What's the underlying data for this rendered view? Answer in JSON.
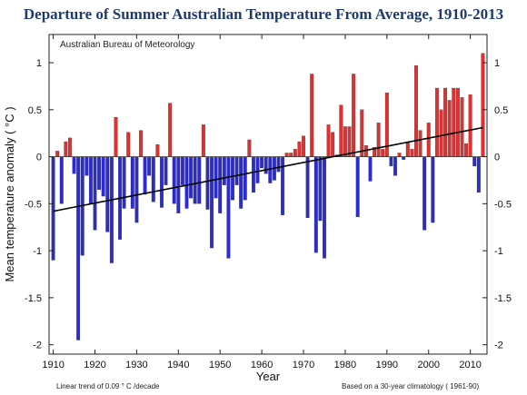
{
  "chart_data": {
    "type": "bar",
    "title": "Departure of Summer Australian Temperature From Average, 1910-2013",
    "source_label": "Australian Bureau of Meteorology",
    "xlabel": "Year",
    "ylabel": "Mean temperature anomaly ( °C )",
    "xlim": [
      1909,
      2014
    ],
    "ylim": [
      -2.1,
      1.3
    ],
    "x_ticks": [
      1910,
      1920,
      1930,
      1940,
      1950,
      1960,
      1970,
      1980,
      1990,
      2000,
      2010
    ],
    "y_ticks": [
      -2,
      -1.5,
      -1,
      -0.5,
      0,
      0.5,
      1
    ],
    "y_tick_labels": [
      "-2",
      "-1.5",
      "-1",
      "-0.5",
      "0",
      "0.5",
      "1"
    ],
    "grid": false,
    "colors": {
      "positive": "#e03030",
      "negative": "#2b2bd4",
      "trend": "#000000",
      "title": "#1f3a6e"
    },
    "years": [
      1910,
      1911,
      1912,
      1913,
      1914,
      1915,
      1916,
      1917,
      1918,
      1919,
      1920,
      1921,
      1922,
      1923,
      1924,
      1925,
      1926,
      1927,
      1928,
      1929,
      1930,
      1931,
      1932,
      1933,
      1934,
      1935,
      1936,
      1937,
      1938,
      1939,
      1940,
      1941,
      1942,
      1943,
      1944,
      1945,
      1946,
      1947,
      1948,
      1949,
      1950,
      1951,
      1952,
      1953,
      1954,
      1955,
      1956,
      1957,
      1958,
      1959,
      1960,
      1961,
      1962,
      1963,
      1964,
      1965,
      1966,
      1967,
      1968,
      1969,
      1970,
      1971,
      1972,
      1973,
      1974,
      1975,
      1976,
      1977,
      1978,
      1979,
      1980,
      1981,
      1982,
      1983,
      1984,
      1985,
      1986,
      1987,
      1988,
      1989,
      1990,
      1991,
      1992,
      1993,
      1994,
      1995,
      1996,
      1997,
      1998,
      1999,
      2000,
      2001,
      2002,
      2003,
      2004,
      2005,
      2006,
      2007,
      2008,
      2009,
      2010,
      2011,
      2012,
      2013
    ],
    "values": [
      -1.1,
      0.06,
      -0.5,
      0.16,
      0.2,
      -0.18,
      -1.95,
      -1.05,
      -0.2,
      -0.5,
      -0.78,
      -0.35,
      -0.42,
      -0.8,
      -1.13,
      0.42,
      -0.88,
      -0.55,
      0.26,
      -0.55,
      -0.7,
      0.28,
      -0.4,
      -0.2,
      -0.48,
      0.13,
      -0.54,
      -0.3,
      0.57,
      -0.5,
      -0.6,
      -0.3,
      -0.55,
      -0.44,
      -0.5,
      -0.5,
      0.34,
      -0.56,
      -0.97,
      -0.44,
      -0.6,
      -0.3,
      -1.08,
      -0.46,
      -0.3,
      -0.55,
      -0.46,
      0.18,
      -0.38,
      -0.28,
      -0.12,
      -0.18,
      -0.28,
      -0.25,
      -0.16,
      -0.62,
      0.04,
      0.04,
      0.08,
      0.16,
      0.22,
      -0.65,
      0.88,
      -1.02,
      -0.68,
      -1.08,
      0.34,
      0.26,
      0.02,
      0.55,
      0.32,
      0.32,
      0.88,
      -0.64,
      0.5,
      0.12,
      -0.26,
      0.1,
      0.36,
      0.08,
      0.68,
      -0.1,
      -0.2,
      0.04,
      -0.03,
      0.16,
      0.08,
      0.97,
      0.28,
      -0.78,
      0.36,
      -0.7,
      0.73,
      0.5,
      0.73,
      0.6,
      0.73,
      0.73,
      0.63,
      0.14,
      0.66,
      -0.1,
      -0.38,
      1.1
    ],
    "trend": {
      "x": [
        1910,
        2013
      ],
      "y": [
        -0.58,
        0.31
      ]
    },
    "footnote_left": "Linear  trend of 0.09  ° C /decade",
    "footnote_right": "Based on a 30-year climatology ( 1961-90)"
  }
}
